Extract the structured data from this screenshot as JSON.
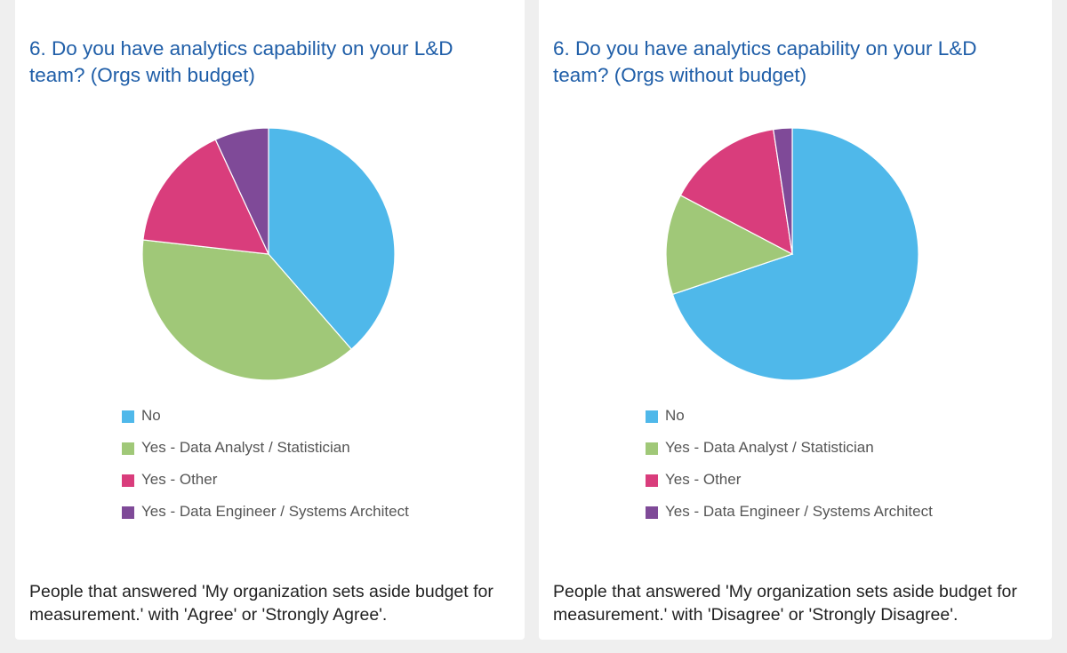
{
  "chart_data": [
    {
      "type": "pie",
      "title": "6. Do you have analytics capability on your L&D team? (Orgs with budget)",
      "categories": [
        "No",
        "Yes - Data Analyst / Statistician",
        "Yes - Other",
        "Yes - Data Engineer / Systems Architect"
      ],
      "values": [
        38.6,
        38.2,
        16.3,
        6.9
      ],
      "colors": [
        "#4fb8ea",
        "#a0c878",
        "#d93d7c",
        "#7f4a98"
      ],
      "legend": "bottom",
      "footnote": "People that answered 'My organization sets aside budget for measurement.' with 'Agree' or 'Strongly Agree'."
    },
    {
      "type": "pie",
      "title": "6. Do you have analytics capability on your L&D team? (Orgs without budget)",
      "categories": [
        "No",
        "Yes - Data Analyst / Statistician",
        "Yes - Other",
        "Yes - Data Engineer / Systems Architect"
      ],
      "values": [
        69.9,
        12.9,
        14.9,
        2.4
      ],
      "colors": [
        "#4fb8ea",
        "#a0c878",
        "#d93d7c",
        "#7f4a98"
      ],
      "legend": "bottom",
      "footnote": "People that answered 'My organization sets aside budget for measurement.' with 'Disagree' or 'Strongly Disagree'."
    }
  ]
}
